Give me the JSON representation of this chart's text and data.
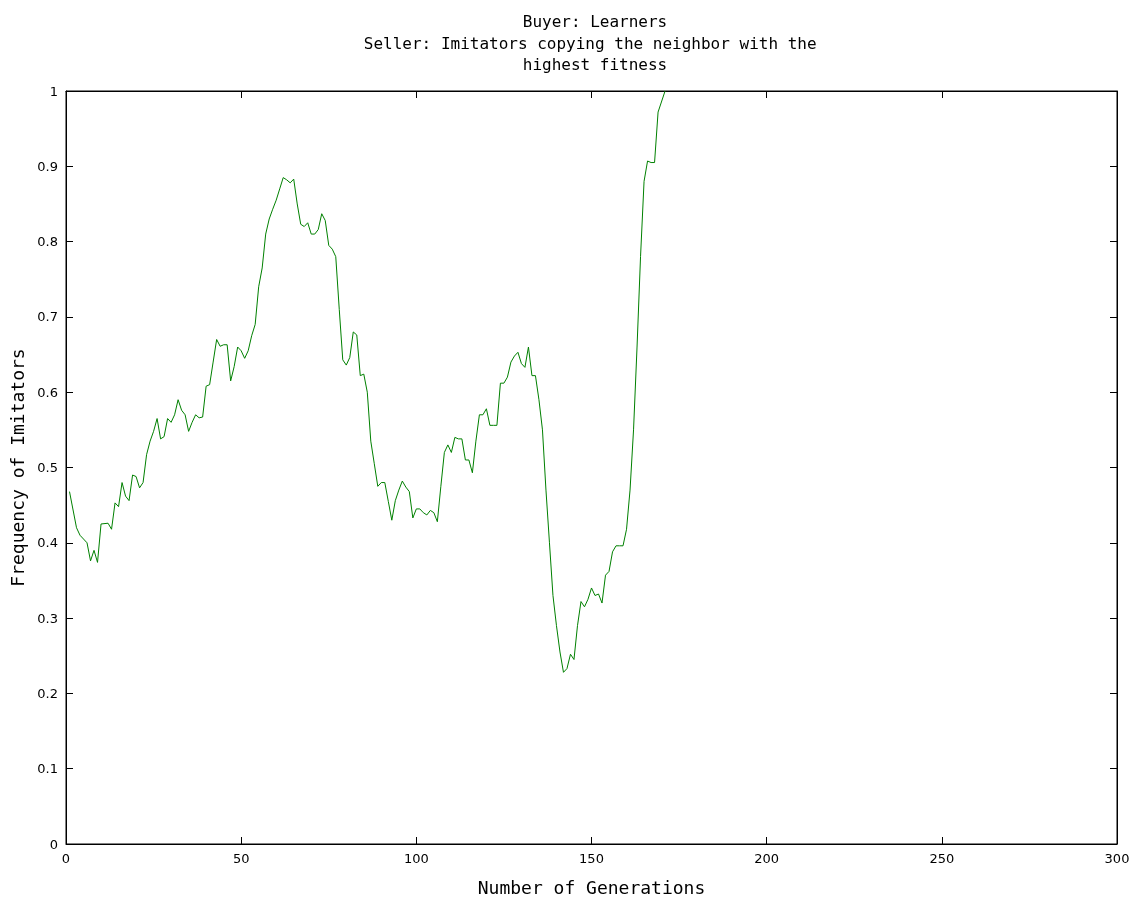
{
  "chart_data": {
    "type": "line",
    "title": "Buyer: Learners",
    "subtitle": "Seller: Imitators copying the neighbor with the highest fitness",
    "xlabel": "Number of Generations",
    "ylabel": "Frequency of Imitators",
    "x": [
      1,
      3,
      4,
      5,
      6,
      7,
      8,
      9,
      10,
      12,
      13,
      14,
      15,
      16,
      17,
      18,
      19,
      20,
      21,
      22,
      23,
      24,
      25,
      26,
      27,
      28,
      29,
      30,
      31,
      32,
      33,
      34,
      35,
      36,
      37,
      38,
      39,
      40,
      41,
      42,
      43,
      44,
      45,
      46,
      47,
      48,
      49,
      50,
      51,
      52,
      53,
      54,
      55,
      56,
      57,
      58,
      59,
      60,
      61,
      62,
      63,
      64,
      65,
      66,
      67,
      68,
      69,
      70,
      71,
      72,
      73,
      74,
      75,
      76,
      77,
      78,
      79,
      80,
      81,
      82,
      83,
      84,
      85,
      86,
      87,
      88,
      89,
      90,
      91,
      92,
      93,
      94,
      95,
      96,
      97,
      98,
      99,
      100,
      101,
      102,
      103,
      104,
      105,
      106,
      107,
      108,
      109,
      110,
      111,
      112,
      113,
      114,
      115,
      116,
      117,
      118,
      119,
      120,
      121,
      122,
      123,
      124,
      125,
      126,
      127,
      128,
      129,
      130,
      131,
      132,
      133,
      134,
      135,
      136,
      137,
      138,
      139,
      140,
      141,
      142,
      143,
      144,
      145,
      146,
      147,
      148,
      149,
      150,
      151,
      152,
      153,
      154,
      155,
      156,
      157,
      158,
      159,
      160,
      161,
      162,
      163,
      164,
      165,
      166,
      167,
      168,
      169,
      171
    ],
    "series": [
      {
        "color": "#008000",
        "values": [
          0.468,
          0.42,
          0.41,
          0.405,
          0.4,
          0.376,
          0.39,
          0.374,
          0.425,
          0.426,
          0.418,
          0.453,
          0.448,
          0.48,
          0.462,
          0.456,
          0.49,
          0.488,
          0.473,
          0.48,
          0.517,
          0.535,
          0.548,
          0.565,
          0.538,
          0.541,
          0.565,
          0.56,
          0.57,
          0.59,
          0.576,
          0.57,
          0.548,
          0.56,
          0.57,
          0.566,
          0.567,
          0.608,
          0.61,
          0.64,
          0.67,
          0.661,
          0.663,
          0.663,
          0.615,
          0.634,
          0.66,
          0.655,
          0.645,
          0.655,
          0.675,
          0.69,
          0.74,
          0.765,
          0.81,
          0.83,
          0.843,
          0.855,
          0.87,
          0.885,
          0.882,
          0.878,
          0.883,
          0.85,
          0.823,
          0.82,
          0.825,
          0.81,
          0.81,
          0.816,
          0.837,
          0.828,
          0.795,
          0.79,
          0.78,
          0.71,
          0.643,
          0.636,
          0.646,
          0.68,
          0.676,
          0.622,
          0.624,
          0.6,
          0.535,
          0.505,
          0.475,
          0.48,
          0.48,
          0.455,
          0.43,
          0.456,
          0.47,
          0.482,
          0.474,
          0.468,
          0.433,
          0.445,
          0.445,
          0.44,
          0.437,
          0.443,
          0.44,
          0.428,
          0.475,
          0.52,
          0.53,
          0.52,
          0.54,
          0.538,
          0.538,
          0.51,
          0.51,
          0.493,
          0.535,
          0.57,
          0.57,
          0.578,
          0.556,
          0.556,
          0.556,
          0.612,
          0.612,
          0.62,
          0.64,
          0.648,
          0.653,
          0.638,
          0.633,
          0.66,
          0.622,
          0.622,
          0.59,
          0.55,
          0.47,
          0.4,
          0.33,
          0.29,
          0.255,
          0.228,
          0.233,
          0.252,
          0.245,
          0.29,
          0.322,
          0.315,
          0.325,
          0.34,
          0.33,
          0.332,
          0.32,
          0.357,
          0.362,
          0.388,
          0.396,
          0.396,
          0.396,
          0.418,
          0.47,
          0.55,
          0.66,
          0.78,
          0.88,
          0.907,
          0.905,
          0.905,
          0.972,
          1.0
        ]
      }
    ],
    "xlim": [
      0,
      300
    ],
    "xticks": [
      0,
      50,
      100,
      150,
      200,
      250,
      300
    ],
    "ylim": [
      0,
      1
    ],
    "yticks": [
      0,
      0.1,
      0.2,
      0.3,
      0.4,
      0.5,
      0.6,
      0.7,
      0.8,
      0.9,
      1
    ],
    "marker": "none",
    "line_style": "solid"
  }
}
